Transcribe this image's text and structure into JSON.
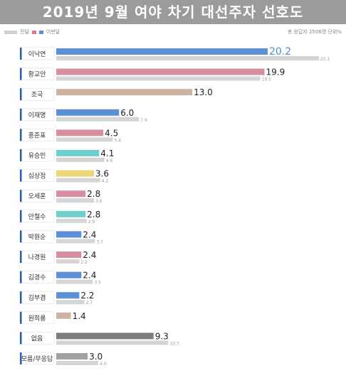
{
  "header": {
    "title": "2019년 9월 여야 차기 대선주자 선호도"
  },
  "legend": {
    "prev_label": "전달",
    "cur_label": "이번달",
    "cur_colors": [
      "#e07a8c",
      "#5b8fd6"
    ]
  },
  "meta": {
    "respondents": "총 응답자 2506명",
    "unit": "단위%"
  },
  "colors": {
    "prev": "#d5d5d5",
    "blue": "#5b8fd6",
    "pink": "#d68ea0",
    "tan": "#cdb39f",
    "teal": "#6fcfcf",
    "yellow": "#efd477",
    "darkgray": "#7d7d7d",
    "midgray": "#a3a3a3",
    "highlight_text": "#4a8fd1"
  },
  "chart_data": {
    "type": "bar",
    "orientation": "horizontal",
    "title": "2019년 9월 여야 차기 대선주자 선호도",
    "categories": [
      "이낙연",
      "황교안",
      "조국",
      "이재명",
      "홍준표",
      "유승민",
      "심상정",
      "오세훈",
      "안철수",
      "박원순",
      "나경원",
      "김경수",
      "김부겸",
      "원희룡",
      "없음",
      "모름/무응답"
    ],
    "series": [
      {
        "name": "이번달",
        "values": [
          20.2,
          19.9,
          13.0,
          6.0,
          4.5,
          4.1,
          3.6,
          2.8,
          2.8,
          2.4,
          2.4,
          2.4,
          2.2,
          1.4,
          9.3,
          3.0
        ]
      },
      {
        "name": "전달",
        "values": [
          25.1,
          19.5,
          null,
          7.9,
          5.4,
          4.6,
          4.2,
          3.6,
          2.9,
          3.7,
          2.2,
          3.5,
          2.7,
          null,
          10.7,
          4.0
        ]
      }
    ],
    "value_labels_current": [
      "20.2",
      "19.9",
      "13.0",
      "6.0",
      "4.5",
      "4.1",
      "3.6",
      "2.8",
      "2.8",
      "2.4",
      "2.4",
      "2.4",
      "2.2",
      "1.4",
      "9.3",
      "3.0"
    ],
    "value_labels_prev": [
      "25.1",
      "19.5",
      "",
      "7.9",
      "5.4",
      "4.6",
      "4.2",
      "3.6",
      "2.9",
      "3.7",
      "2.2",
      "3.5",
      "2.7",
      "",
      "10.7",
      "4.0"
    ],
    "bar_colors": [
      "blue",
      "pink",
      "tan",
      "blue",
      "pink",
      "teal",
      "yellow",
      "pink",
      "teal",
      "blue",
      "pink",
      "blue",
      "blue",
      "tan",
      "darkgray",
      "midgray"
    ],
    "xlim": [
      0,
      26
    ],
    "grid": false,
    "legend_position": "top-left"
  }
}
